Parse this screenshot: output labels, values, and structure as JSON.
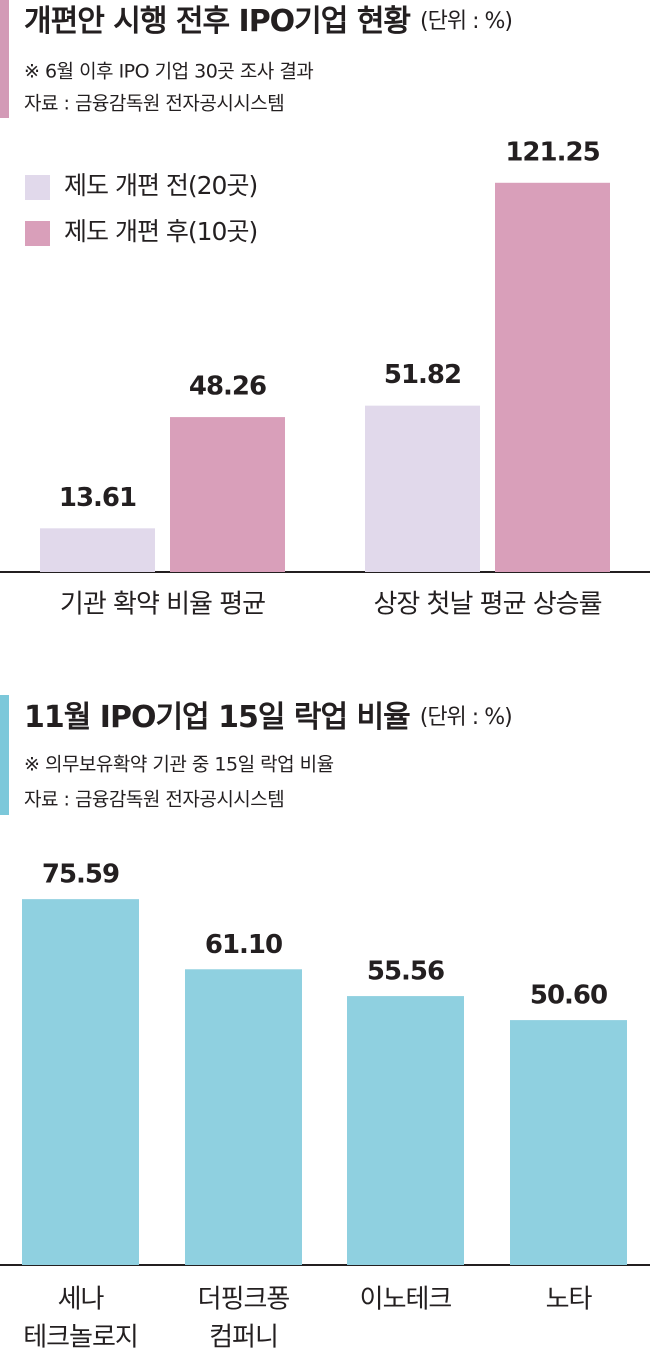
{
  "chart_data": [
    {
      "type": "bar",
      "title": "개편안 시행 전후 IPO기업 현황",
      "unit": "(단위 : %)",
      "note": "※ 6월 이후 IPO 기업 30곳 조사 결과",
      "source": "자료 : 금융감독원 전자공시시스템",
      "categories": [
        "기관 확약 비율 평균",
        "상장 첫날 평균 상승률"
      ],
      "series": [
        {
          "name": "제도 개편 전(20곳)",
          "color": "#e1d9eb",
          "values": [
            13.61,
            51.82
          ]
        },
        {
          "name": "제도 개편 후(10곳)",
          "color": "#d99fba",
          "values": [
            48.26,
            121.25
          ]
        }
      ],
      "legend": "top-left",
      "accent": "#d39ab6"
    },
    {
      "type": "bar",
      "title": "11월 IPO기업 15일 락업 비율",
      "unit": "(단위 : %)",
      "note": "※ 의무보유확약 기관 중 15일 락업 비율",
      "source": "자료 : 금융감독원 전자공시시스템",
      "categories": [
        [
          "세나",
          "테크놀로지"
        ],
        [
          "더핑크퐁",
          "컴퍼니"
        ],
        [
          "이노테크"
        ],
        [
          "노타"
        ]
      ],
      "values": [
        75.59,
        61.1,
        55.56,
        50.6
      ],
      "value_labels": [
        "75.59",
        "61.10",
        "55.56",
        "50.60"
      ],
      "color": "#8fd0e0",
      "accent": "#7cc8da"
    }
  ]
}
